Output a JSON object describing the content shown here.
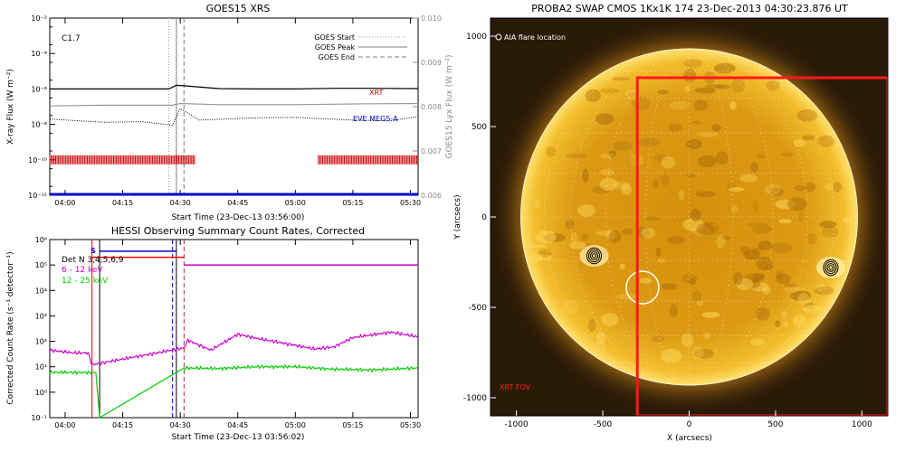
{
  "colors": {
    "xrt": "#cc0000",
    "eve": "#0000cc",
    "det": "#0000cc",
    "swap_bg": "#2a1a08",
    "fov": "#ff1a1a",
    "low_band": "#cc00cc",
    "mid_band": "#00cc00",
    "grey": "#999999"
  },
  "goes": {
    "title": "GOES15 XRS",
    "flare_class": "C1.7",
    "ylabel_left": "X-ray Flux (W m⁻²)",
    "ylabel_right": "GOES15 Lyx Flux (W m⁻²)",
    "xlabel": "Start Time (23-Dec-13 03:56:00)",
    "left_ticks": [
      "10⁻²",
      "10⁻⁴",
      "10⁻⁶",
      "10⁻⁸",
      "10⁻¹⁰",
      "10⁻¹²"
    ],
    "right_ticks": [
      "0.010",
      "0.009",
      "0.008",
      "0.007",
      "0.006"
    ],
    "x_ticks": [
      "04:00",
      "04:15",
      "04:30",
      "04:45",
      "05:00",
      "05:15",
      "05:30"
    ],
    "legend": [
      "GOES Start",
      "GOES Peak",
      "GOES End"
    ],
    "label_xrt": "XRT",
    "label_eve": "EVE MEGS-A"
  },
  "hessi": {
    "title": "HESSI Observing Summary Count Rates, Corrected",
    "ylabel": "Corrected Count Rate (s⁻¹ detector⁻¹)",
    "xlabel": "Start Time (23-Dec-13 03:56:02)",
    "y_ticks": [
      "10⁶",
      "10⁵",
      "10⁴",
      "10³",
      "10²",
      "10¹",
      "10⁰",
      "10⁻¹"
    ],
    "x_ticks": [
      "04:00",
      "04:15",
      "04:30",
      "04:45",
      "05:00",
      "05:15",
      "05:30"
    ],
    "det_label": "Det N 3,4,5,6,9",
    "band_low": "6 - 12 keV",
    "band_mid": "12 - 25 keV",
    "marker_s": "S"
  },
  "swap": {
    "title": "PROBA2 SWAP CMOS 1Kx1K 174 23-Dec-2013 04:30:23.876 UT",
    "legend": "AIA flare location",
    "ylabel": "Y (arcsecs)",
    "xlabel": "X (arcsecs)",
    "x_ticks": [
      "-1000",
      "-500",
      "0",
      "500",
      "1000"
    ],
    "y_ticks": [
      "1000",
      "500",
      "0",
      "-500",
      "-1000"
    ],
    "fov_label": "XRT FOV"
  },
  "chart_data": [
    {
      "type": "line",
      "title": "GOES15 XRS",
      "xlabel": "Start Time (23-Dec-13 03:56:00)",
      "ylabel": "X-ray Flux (W m⁻²)",
      "y_scale": "log",
      "ylim": [
        1e-12,
        0.01
      ],
      "y2label": "GOES15 Lyx Flux (W m⁻²)",
      "y2lim": [
        0.006,
        0.01
      ],
      "xlim": [
        "03:56",
        "05:32"
      ],
      "annotations": [
        "C1.7",
        "XRT",
        "EVE MEGS-A"
      ],
      "vertical_markers": [
        {
          "name": "GOES Start",
          "x": "04:27",
          "style": "dotted"
        },
        {
          "name": "GOES Peak",
          "x": "04:29",
          "style": "solid"
        },
        {
          "name": "GOES End",
          "x": "04:31",
          "style": "dashed"
        }
      ],
      "series": [
        {
          "name": "XRT",
          "color": "#cc0000",
          "coverage": [
            [
              "03:56",
              "04:34"
            ],
            [
              "05:06",
              "05:32"
            ]
          ]
        },
        {
          "name": "EVE MEGS-A",
          "color": "#0000cc",
          "y": 1e-12
        },
        {
          "x": [
            "03:56",
            "04:10",
            "04:20",
            "04:27",
            "04:29",
            "04:31",
            "04:40",
            "04:50",
            "05:00",
            "05:10",
            "05:20",
            "05:32"
          ],
          "y": [
            1e-06,
            1e-06,
            1e-06,
            1e-06,
            1.6e-06,
            1.5e-06,
            1.05e-06,
            1e-06,
            1e-06,
            1.08e-06,
            1.08e-06,
            1.05e-06
          ]
        },
        {
          "x": [
            "03:56",
            "04:10",
            "04:20",
            "04:28",
            "04:30",
            "04:40",
            "05:00",
            "05:20",
            "05:32"
          ],
          "y": [
            1.1e-07,
            1.2e-07,
            1.2e-07,
            1.2e-07,
            1.5e-07,
            1.3e-07,
            1.3e-07,
            1.45e-07,
            1.5e-07
          ]
        },
        {
          "x": [
            "03:56",
            "04:10",
            "04:20",
            "04:28",
            "04:30",
            "04:35",
            "04:50",
            "05:00",
            "05:15",
            "05:25",
            "05:32"
          ],
          "y": [
            2e-08,
            1.5e-08,
            1.2e-08,
            1e-08,
            8e-08,
            1.5e-08,
            2.8e-08,
            2.3e-08,
            1.6e-08,
            1.9e-08,
            2.4e-08
          ]
        }
      ]
    },
    {
      "type": "line",
      "title": "HESSI Observing Summary Count Rates, Corrected",
      "xlabel": "Start Time (23-Dec-13 03:56:02)",
      "ylabel": "Corrected Count Rate (s⁻¹ detector⁻¹)",
      "y_scale": "log",
      "ylim": [
        0.1,
        1000000.0
      ],
      "xlim": [
        "03:56",
        "05:32"
      ],
      "annotations": [
        "Det N 3,4,5,6,9",
        "S"
      ],
      "flag_bars": [
        {
          "color": "#ff0000",
          "x": [
            "04:07",
            "04:31"
          ],
          "y": 200000.0
        },
        {
          "color": "#0000cc",
          "x": [
            "04:09",
            "04:29"
          ],
          "y": 350000.0
        },
        {
          "color": "#cc00cc",
          "x": [
            "04:31",
            "05:32"
          ],
          "y": 100000.0
        }
      ],
      "vertical_markers": [
        {
          "x": "04:07",
          "color": "#ff0000"
        },
        {
          "x": "04:09",
          "color": "#000000"
        },
        {
          "x": "04:28",
          "color": "#0000cc",
          "style": "dashed"
        },
        {
          "x": "04:29",
          "color": "#000000",
          "style": "solid"
        },
        {
          "x": "04:31",
          "color": "#aa3333",
          "style": "dashed"
        }
      ],
      "series": [
        {
          "name": "6 - 12 keV",
          "color": "#cc00cc",
          "x": [
            "03:56",
            "04:02",
            "04:06",
            "04:07",
            "04:31",
            "04:32",
            "04:38",
            "04:45",
            "04:50",
            "05:00",
            "05:05",
            "05:10",
            "05:15",
            "05:20",
            "05:25",
            "05:32"
          ],
          "y": [
            45,
            35,
            35,
            12,
            55,
            110,
            45,
            190,
            130,
            70,
            50,
            60,
            140,
            180,
            230,
            150
          ]
        },
        {
          "name": "12 - 25 keV",
          "color": "#00cc00",
          "x": [
            "03:56",
            "04:05",
            "04:08",
            "04:09",
            "04:31",
            "04:40",
            "04:50",
            "05:00",
            "05:10",
            "05:20",
            "05:32"
          ],
          "y": [
            6,
            6,
            6,
            0.1,
            9,
            8.5,
            10,
            10,
            8,
            7.5,
            9
          ]
        }
      ]
    },
    {
      "type": "image",
      "title": "PROBA2 SWAP CMOS 1Kx1K 174 23-Dec-2013 04:30:23.876 UT",
      "xlabel": "X (arcsecs)",
      "ylabel": "Y (arcsecs)",
      "xlim": [
        -1150,
        1150
      ],
      "ylim": [
        -1100,
        1100
      ],
      "solar_radius": 975,
      "legend": [
        "AIA flare location",
        "XRT FOV"
      ],
      "regions": [
        {
          "name": "XRT FOV",
          "x": [
            -300,
            1150
          ],
          "y": [
            -1100,
            770
          ]
        },
        {
          "name": "AIA flare location",
          "x": -270,
          "y": -390
        }
      ],
      "contour_centers": [
        {
          "x": -550,
          "y": -215
        },
        {
          "x": 820,
          "y": -280
        }
      ]
    }
  ]
}
